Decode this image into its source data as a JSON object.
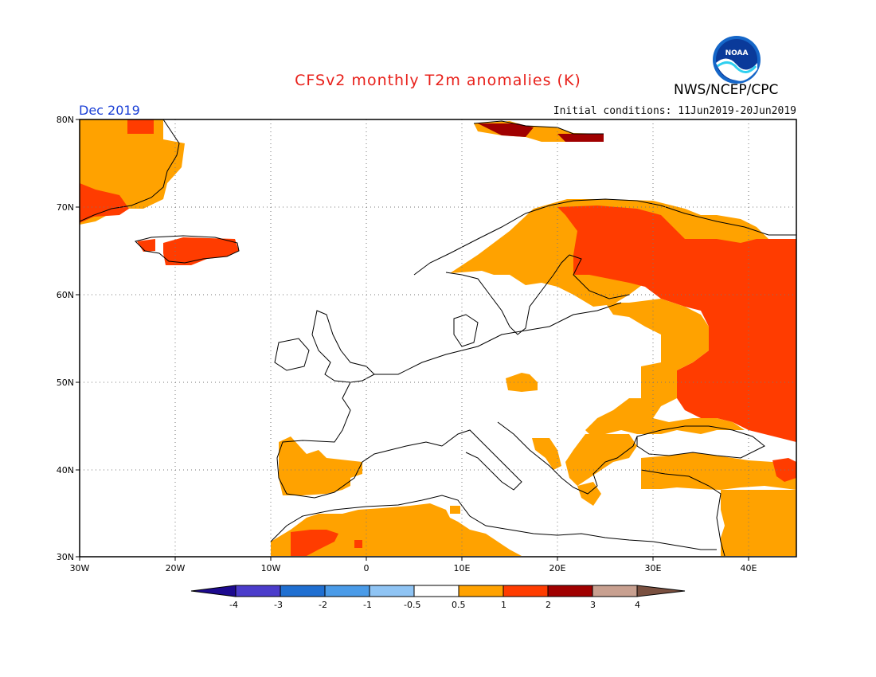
{
  "title": "CFSv2 monthly T2m anomalies (K)",
  "month_label": "Dec 2019",
  "initial_conditions": "Initial conditions: 11Jun2019-20Jun2019",
  "agency": "NWS/NCEP/CPC",
  "logo_text": "NOAA",
  "lat_labels": [
    "80N",
    "70N",
    "60N",
    "50N",
    "40N",
    "30N"
  ],
  "lon_labels": [
    "30W",
    "20W",
    "10W",
    "0",
    "10E",
    "20E",
    "30E",
    "40E"
  ],
  "legend_labels": [
    "-4",
    "-3",
    "-2",
    "-1",
    "-0.5",
    "0.5",
    "1",
    "2",
    "3",
    "4"
  ],
  "colors": {
    "c_m4": "#1d0a8f",
    "c_m3": "#4b3ccb",
    "c_m2": "#1f6fd1",
    "c_m1": "#4a9be8",
    "c_m05": "#8fc4f4",
    "c_0": "#ffffff",
    "c_05": "#ffa200",
    "c_1": "#ff3c00",
    "c_2": "#a00000",
    "c_3": "#c8a090",
    "c_4": "#7a5040"
  }
}
